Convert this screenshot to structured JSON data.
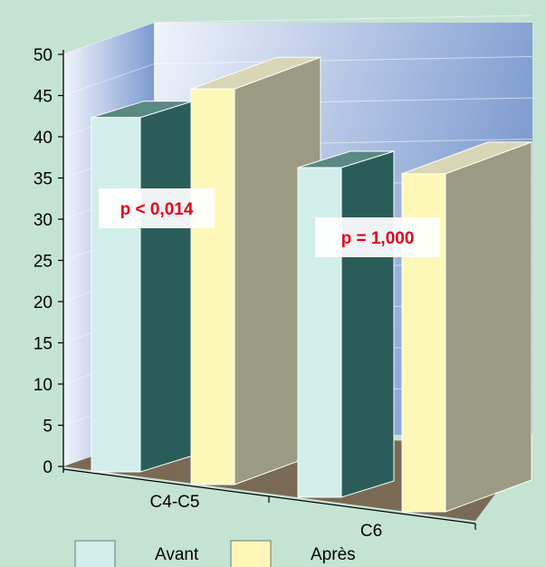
{
  "chart_data": {
    "type": "bar",
    "categories": [
      "C4-C5",
      "C6"
    ],
    "series": [
      {
        "name": "Avant",
        "values": [
          43,
          40
        ]
      },
      {
        "name": "Après",
        "values": [
          48,
          41
        ]
      }
    ],
    "ylim": [
      0,
      50
    ],
    "yticks": [
      "0",
      "5",
      "10",
      "15",
      "20",
      "25",
      "30",
      "35",
      "40",
      "45",
      "50"
    ],
    "annotations": [
      "p < 0,014",
      "p = 1,000"
    ],
    "grid": true,
    "legend_position": "bottom-left",
    "three_d": true
  },
  "colors": {
    "background": "#c5e3d3",
    "back_wall_light": "#f0f3fb",
    "back_wall_dark": "#7d9bd0",
    "floor": "#7a6a55",
    "avant_front": "#d2eeea",
    "avant_side": "#2a5d5a",
    "avant_top": "#5a8882",
    "apres_front": "#fdf8b8",
    "apres_side": "#9b9a82",
    "apres_top": "#d9d6b6",
    "annotation_text": "#e3001b"
  }
}
